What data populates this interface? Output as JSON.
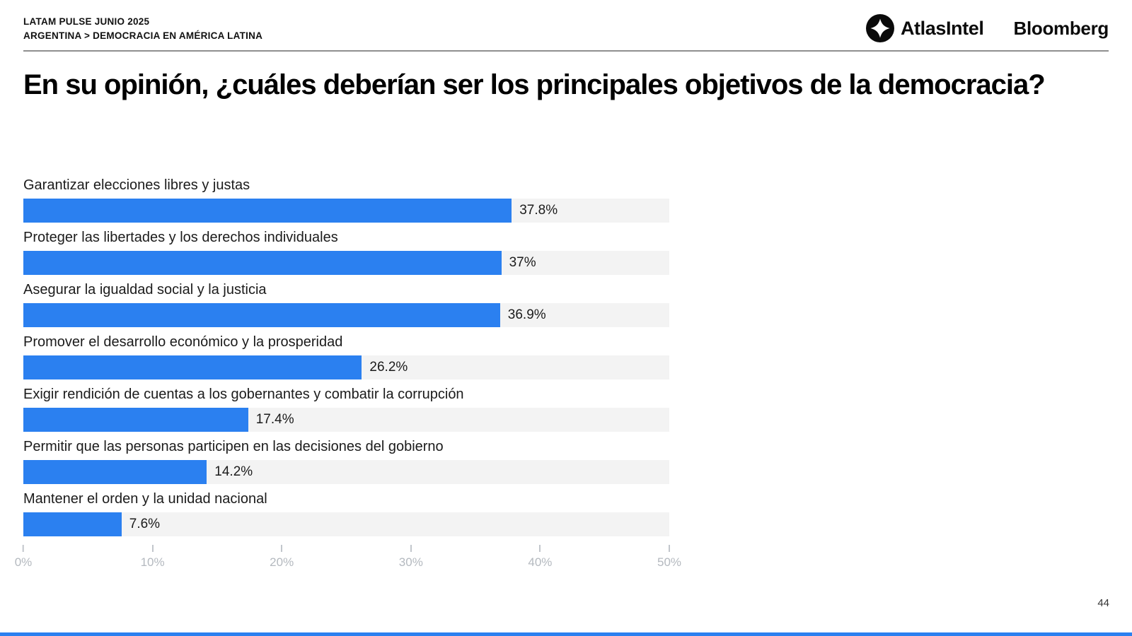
{
  "header": {
    "kicker_line1": "LATAM PULSE JUNIO 2025",
    "kicker_line2": "ARGENTINA > DEMOCRACIA EN AMÉRICA LATINA",
    "logos": {
      "atlasintel_label": "AtlasIntel",
      "bloomberg_label": "Bloomberg"
    }
  },
  "title": "En su opinión, ¿cuáles deberían ser los principales objetivos de la democracia?",
  "page_number": "44",
  "colors": {
    "bar_blue": "#2b80f0",
    "track_gray": "#f3f3f3",
    "axis_gray": "#b4b9bf",
    "logo_black": "#0a0a0a"
  },
  "chart_data": {
    "type": "bar",
    "orientation": "horizontal",
    "title": "En su opinión, ¿cuáles deberían ser los principales objetivos de la democracia?",
    "categories": [
      "Garantizar elecciones libres y justas",
      "Proteger las libertades y los derechos individuales",
      "Asegurar la igualdad social y la justicia",
      "Promover el desarrollo económico y la prosperidad",
      "Exigir rendición de cuentas a los gobernantes y combatir la corrupción",
      "Permitir que las personas participen en las decisiones del gobierno",
      "Mantener el orden y la unidad nacional"
    ],
    "values": [
      37.8,
      37,
      36.9,
      26.2,
      17.4,
      14.2,
      7.6
    ],
    "value_labels": [
      "37.8%",
      "37%",
      "36.9%",
      "26.2%",
      "17.4%",
      "14.2%",
      "7.6%"
    ],
    "xlim": [
      0,
      50
    ],
    "x_ticks": [
      "0%",
      "10%",
      "20%",
      "30%",
      "40%",
      "50%"
    ],
    "grid": "off",
    "legend": "none"
  }
}
